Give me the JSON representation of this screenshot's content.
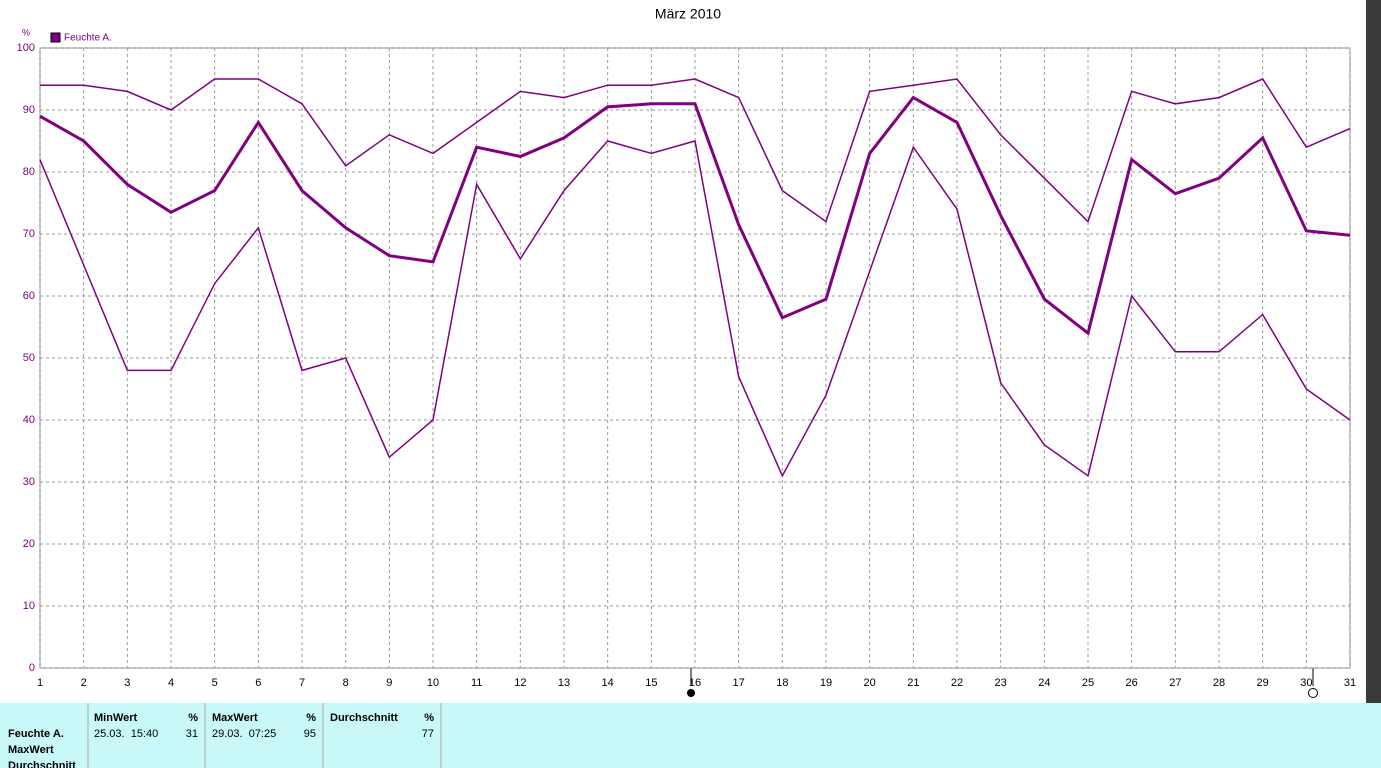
{
  "chart_data": {
    "type": "line",
    "title": "März 2010",
    "y_label": "%",
    "legend": "Feuchte A.",
    "x": [
      1,
      2,
      3,
      4,
      5,
      6,
      7,
      8,
      9,
      10,
      11,
      12,
      13,
      14,
      15,
      16,
      17,
      18,
      19,
      20,
      21,
      22,
      23,
      24,
      25,
      26,
      27,
      28,
      29,
      30,
      31
    ],
    "xlim": [
      1,
      31
    ],
    "xticks": [
      1,
      2,
      3,
      4,
      5,
      6,
      7,
      8,
      9,
      10,
      11,
      12,
      13,
      14,
      15,
      16,
      17,
      18,
      19,
      20,
      21,
      22,
      23,
      24,
      25,
      26,
      27,
      28,
      29,
      30,
      31
    ],
    "ylim": [
      0,
      100
    ],
    "yticks": [
      0,
      10,
      20,
      30,
      40,
      50,
      60,
      70,
      80,
      90,
      100
    ],
    "grid": true,
    "series": [
      {
        "color": "#800080",
        "width": 1.5,
        "values": [
          94,
          94,
          93,
          90,
          95,
          95,
          91,
          81,
          86,
          83,
          88,
          93,
          92,
          94,
          94,
          95,
          92,
          77,
          72,
          93,
          94,
          95,
          86,
          79,
          72,
          93,
          91,
          92,
          95,
          84,
          87
        ]
      },
      {
        "color": "#800080",
        "width": 3,
        "values": [
          89,
          85,
          78,
          73.5,
          77,
          88,
          77,
          71,
          66.5,
          65.5,
          84,
          82.5,
          85.5,
          90.5,
          91,
          91,
          71.5,
          56.5,
          59.5,
          83,
          92,
          88,
          73,
          59.5,
          54,
          82,
          76.5,
          79,
          85.5,
          70.5,
          69.8
        ]
      },
      {
        "color": "#800080",
        "width": 1.5,
        "values": [
          82,
          65,
          48,
          48,
          62,
          71,
          48,
          50,
          34,
          40,
          78,
          66,
          77,
          85,
          83,
          85,
          47,
          31,
          44,
          64,
          84,
          74,
          46,
          36,
          31,
          60,
          51,
          51,
          57,
          45,
          40
        ]
      }
    ]
  },
  "table": {
    "row_labels": [
      "Feuchte A.",
      "MaxWert",
      "Durchschnitt"
    ],
    "columns": [
      {
        "header": "MinWert",
        "unit": "%",
        "time": "25.03.  15:40",
        "value": 31
      },
      {
        "header": "MaxWert",
        "unit": "%",
        "time": "29.03.  07:25",
        "value": 95
      },
      {
        "header": "Durchschnitt",
        "unit": "%",
        "value": 77
      }
    ]
  }
}
